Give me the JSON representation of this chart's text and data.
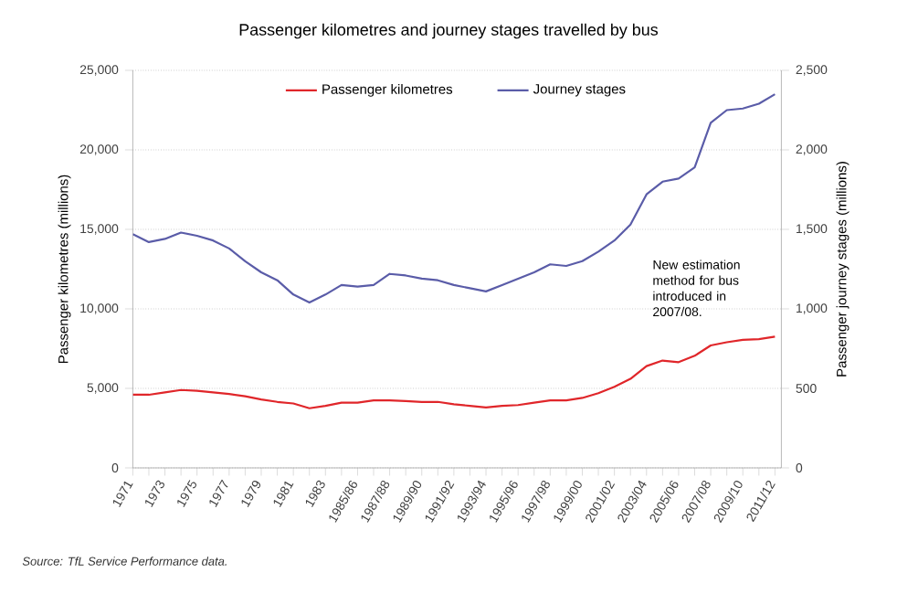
{
  "chart_data": {
    "type": "line",
    "title": "Passenger kilometres and journey stages travelled by bus",
    "ylabel": "Passenger kilometres (millions)",
    "y2label": "Passenger journey stages (millions)",
    "categories": [
      "1971",
      null,
      "1973",
      null,
      "1975",
      null,
      "1977",
      null,
      "1979",
      null,
      "1981",
      null,
      "1983",
      null,
      "1985/86",
      null,
      "1987/88",
      null,
      "1989/90",
      null,
      "1991/92",
      null,
      "1993/94",
      null,
      "1995/96",
      null,
      "1997/98",
      null,
      "1999/00",
      null,
      "2001/02",
      null,
      "2003/04",
      null,
      "2005/06",
      null,
      "2007/08",
      null,
      "2009/10",
      null,
      "2011/12"
    ],
    "series": [
      {
        "name": "Passenger kilometres",
        "color": "#e0262a",
        "values": [
          4600,
          4600,
          4750,
          4900,
          4850,
          4750,
          4650,
          4500,
          4300,
          4150,
          4050,
          3750,
          3900,
          4100,
          4100,
          4250,
          4250,
          4200,
          4150,
          4150,
          4000,
          3900,
          3800,
          3900,
          3950,
          4100,
          4250,
          4250,
          4400,
          4700,
          5100,
          5600,
          6400,
          6750,
          6650,
          7050,
          7700,
          7900,
          8050,
          8100,
          8250
        ]
      },
      {
        "name": "Journey stages",
        "color": "#5a5ca8",
        "axis": "y2",
        "values": [
          1470,
          1420,
          1440,
          1480,
          1460,
          1430,
          1380,
          1300,
          1230,
          1180,
          1090,
          1040,
          1090,
          1150,
          1140,
          1150,
          1220,
          1210,
          1190,
          1180,
          1150,
          1130,
          1110,
          1150,
          1190,
          1230,
          1280,
          1270,
          1300,
          1360,
          1430,
          1530,
          1720,
          1800,
          1820,
          1890,
          2170,
          2250,
          2260,
          2290,
          2350
        ]
      }
    ],
    "ylim": [
      0,
      25000
    ],
    "yticks": [
      0,
      {
        "value": 5000,
        "label": "5,000"
      },
      {
        "value": 10000,
        "label": "10,000"
      },
      {
        "value": 15000,
        "label": "15,000"
      },
      {
        "value": 20000,
        "label": "20,000"
      },
      {
        "value": 25000,
        "label": "25,000"
      }
    ],
    "y2lim": [
      0,
      2500
    ],
    "y2ticks": [
      0,
      500,
      {
        "value": 1000,
        "label": "1,000"
      },
      {
        "value": 1500,
        "label": "1,500"
      },
      {
        "value": 2000,
        "label": "2,000"
      },
      {
        "value": 2500,
        "label": "2,500"
      }
    ],
    "grid": "y",
    "legend": "top",
    "annotations": [
      "New estimation method for bus introduced in 2007/08.",
      "Source: TfL Service Performance data."
    ]
  }
}
